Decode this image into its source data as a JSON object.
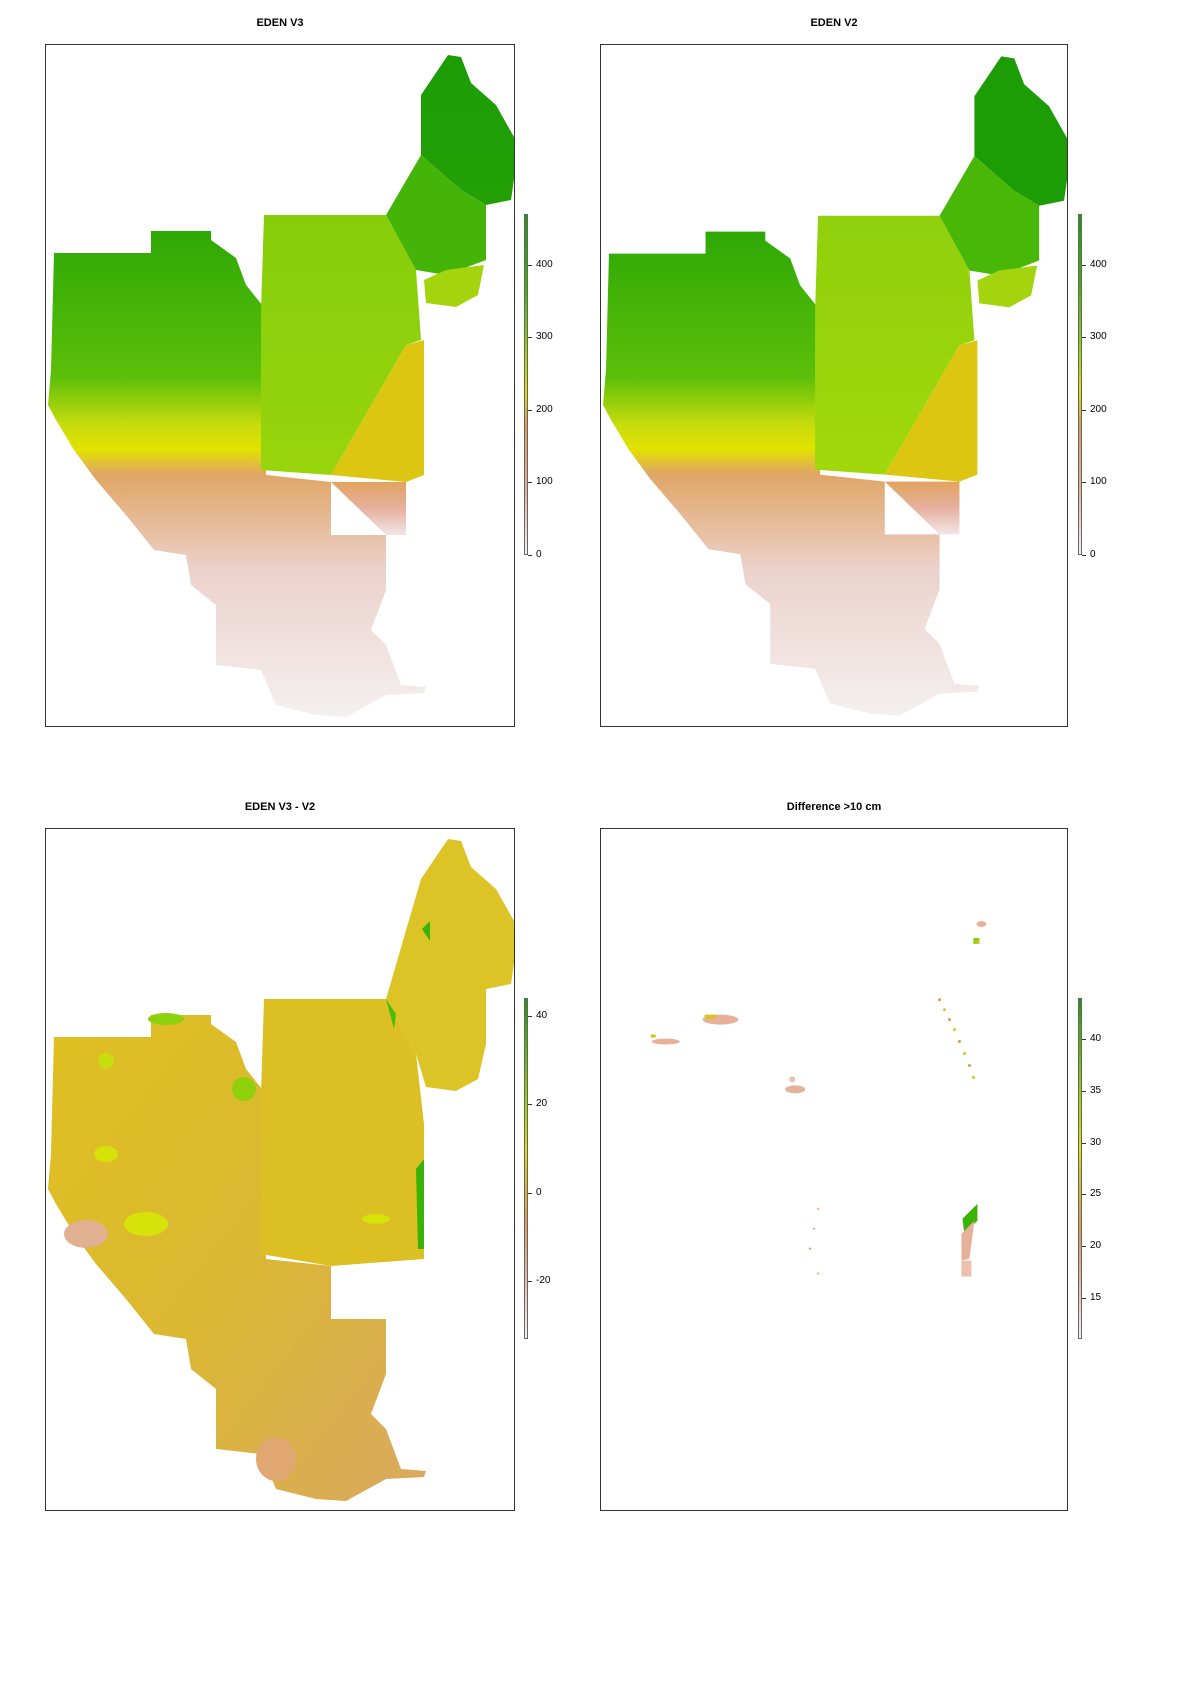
{
  "panels": [
    {
      "id": "v3",
      "title": "EDEN V3",
      "legend_ticks": [
        "0",
        "100",
        "200",
        "300",
        "400"
      ],
      "legend_range": [
        0,
        470
      ]
    },
    {
      "id": "v2",
      "title": "EDEN V2",
      "legend_ticks": [
        "0",
        "100",
        "200",
        "300",
        "400"
      ],
      "legend_range": [
        0,
        470
      ]
    },
    {
      "id": "diff",
      "title": "EDEN V3 - V2",
      "legend_ticks": [
        "-20",
        "0",
        "20",
        "40"
      ],
      "legend_range": [
        -33,
        44
      ]
    },
    {
      "id": "diff10",
      "title": "Difference >10 cm",
      "legend_ticks": [
        "15",
        "20",
        "25",
        "30",
        "35",
        "40"
      ],
      "legend_range": [
        11,
        44
      ]
    }
  ],
  "colors": {
    "dark_green": "#1a9a05",
    "green": "#4cbb0a",
    "light_green": "#8fd00c",
    "yellow_green": "#bcd90f",
    "yellow": "#e0e000",
    "orange": "#e0a050",
    "salmon": "#e6b09b",
    "light_pink": "#f2f2f2",
    "diff_yellow": "#dcc020",
    "frame": "#333333"
  }
}
